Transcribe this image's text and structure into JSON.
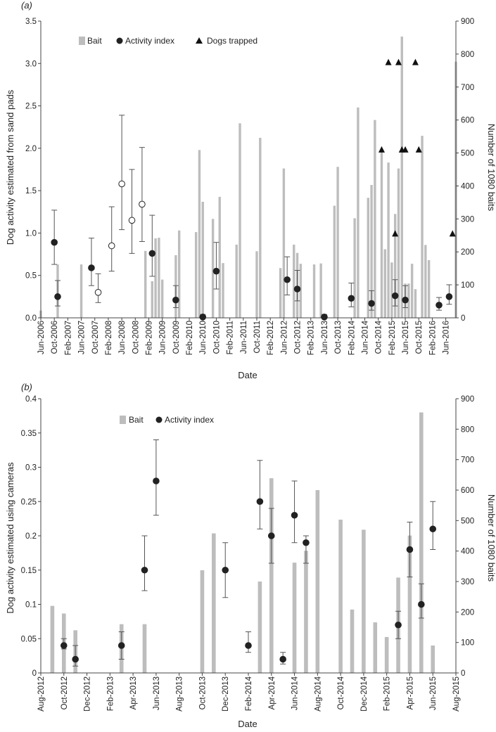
{
  "chart_data": [
    {
      "type": "bar",
      "panel_label": "(a)",
      "xlabel": "Date",
      "ylabel": "Dog activity estimated from sand pads",
      "ylabel_right": "Number of 1080 baits",
      "ylim": [
        0,
        3.5
      ],
      "yticks": [
        "0.0",
        "0.5",
        "1.0",
        "1.5",
        "2.0",
        "2.5",
        "3.0",
        "3.5"
      ],
      "ylim_right": [
        0,
        900
      ],
      "yticks_right": [
        "0",
        "100",
        "200",
        "300",
        "400",
        "500",
        "600",
        "700",
        "800",
        "900"
      ],
      "xlim": [
        "2006-06",
        "2016-09"
      ],
      "x_ticks": [
        "Jun-2006",
        "Oct-2006",
        "Feb-2007",
        "Jun-2007",
        "Oct-2007",
        "Feb-2008",
        "Jun-2008",
        "Oct-2008",
        "Feb-2009",
        "Jun-2009",
        "Oct-2009",
        "Feb-2010",
        "Jun-2010",
        "Oct-2010",
        "Feb-2011",
        "Jun-2011",
        "Oct-2011",
        "Feb-2012",
        "Jun-2012",
        "Oct-2012",
        "Feb-2013",
        "Jun-2013",
        "Oct-2013",
        "Feb-2014",
        "Jun-2014",
        "Oct-2014",
        "Feb-2015",
        "Jun-2015",
        "Oct-2015",
        "Feb-2016",
        "Jun-2016"
      ],
      "legend": {
        "placement": "top-left",
        "bait": "Bait",
        "activity": "Activity index",
        "dogs": "Dogs trapped"
      },
      "colors": {
        "bait": "#bdbdbd",
        "activity": "#222222",
        "activity_open": "#ffffff",
        "dogs": "#111111"
      },
      "bait": [
        {
          "x": "2006-06",
          "y": 22
        },
        {
          "x": "2006-11",
          "y": 162
        },
        {
          "x": "2007-06",
          "y": 162
        },
        {
          "x": "2009-01",
          "y": 203
        },
        {
          "x": "2009-03",
          "y": 111
        },
        {
          "x": "2009-04",
          "y": 241
        },
        {
          "x": "2009-05",
          "y": 243
        },
        {
          "x": "2009-06",
          "y": 116
        },
        {
          "x": "2009-10",
          "y": 190
        },
        {
          "x": "2009-11",
          "y": 265
        },
        {
          "x": "2010-04",
          "y": 260
        },
        {
          "x": "2010-05",
          "y": 509
        },
        {
          "x": "2010-06",
          "y": 352
        },
        {
          "x": "2010-09",
          "y": 300
        },
        {
          "x": "2010-11",
          "y": 367
        },
        {
          "x": "2010-12",
          "y": 166
        },
        {
          "x": "2011-04",
          "y": 222
        },
        {
          "x": "2011-05",
          "y": 590
        },
        {
          "x": "2011-10",
          "y": 202
        },
        {
          "x": "2011-11",
          "y": 546
        },
        {
          "x": "2012-05",
          "y": 151
        },
        {
          "x": "2012-06",
          "y": 453
        },
        {
          "x": "2012-09",
          "y": 222
        },
        {
          "x": "2012-10",
          "y": 197
        },
        {
          "x": "2012-11",
          "y": 164
        },
        {
          "x": "2013-03",
          "y": 162
        },
        {
          "x": "2013-05",
          "y": 165
        },
        {
          "x": "2013-09",
          "y": 340
        },
        {
          "x": "2013-10",
          "y": 458
        },
        {
          "x": "2014-03",
          "y": 302
        },
        {
          "x": "2014-04",
          "y": 638
        },
        {
          "x": "2014-07",
          "y": 364
        },
        {
          "x": "2014-08",
          "y": 403
        },
        {
          "x": "2014-09",
          "y": 600
        },
        {
          "x": "2014-11",
          "y": 510
        },
        {
          "x": "2014-12",
          "y": 208
        },
        {
          "x": "2015-01",
          "y": 471
        },
        {
          "x": "2015-02",
          "y": 168
        },
        {
          "x": "2015-03",
          "y": 315
        },
        {
          "x": "2015-04",
          "y": 453
        },
        {
          "x": "2015-05",
          "y": 853
        },
        {
          "x": "2015-06",
          "y": 104
        },
        {
          "x": "2015-07",
          "y": 104
        },
        {
          "x": "2015-08",
          "y": 164
        },
        {
          "x": "2015-09",
          "y": 87
        },
        {
          "x": "2015-11",
          "y": 552
        },
        {
          "x": "2015-12",
          "y": 221
        },
        {
          "x": "2016-01",
          "y": 175
        },
        {
          "x": "2016-09",
          "y": 777
        }
      ],
      "activity_index": [
        {
          "x": "2006-10",
          "y": 0.89,
          "lo": 0.63,
          "hi": 1.27,
          "filled": true
        },
        {
          "x": "2006-11",
          "y": 0.25,
          "lo": 0.14,
          "hi": 0.44,
          "filled": true
        },
        {
          "x": "2007-09",
          "y": 0.59,
          "lo": 0.38,
          "hi": 0.94,
          "filled": true
        },
        {
          "x": "2007-11",
          "y": 0.3,
          "lo": 0.18,
          "hi": 0.52,
          "filled": false
        },
        {
          "x": "2008-03",
          "y": 0.85,
          "lo": 0.55,
          "hi": 1.31,
          "filled": false
        },
        {
          "x": "2008-06",
          "y": 1.58,
          "lo": 1.04,
          "hi": 2.39,
          "filled": false
        },
        {
          "x": "2008-09",
          "y": 1.15,
          "lo": 0.76,
          "hi": 1.75,
          "filled": false
        },
        {
          "x": "2008-12",
          "y": 1.34,
          "lo": 0.9,
          "hi": 2.01,
          "filled": false
        },
        {
          "x": "2009-03",
          "y": 0.76,
          "lo": 0.49,
          "hi": 1.21,
          "filled": true
        },
        {
          "x": "2009-10",
          "y": 0.21,
          "lo": 0.12,
          "hi": 0.38,
          "filled": true
        },
        {
          "x": "2010-06",
          "y": 0.01,
          "lo": 0.0,
          "hi": 0.04,
          "filled": true
        },
        {
          "x": "2010-10",
          "y": 0.55,
          "lo": 0.34,
          "hi": 0.89,
          "filled": true
        },
        {
          "x": "2012-07",
          "y": 0.45,
          "lo": 0.27,
          "hi": 0.72,
          "filled": true
        },
        {
          "x": "2012-10",
          "y": 0.34,
          "lo": 0.2,
          "hi": 0.56,
          "filled": true
        },
        {
          "x": "2013-06",
          "y": 0.01,
          "lo": 0.0,
          "hi": 0.04,
          "filled": true
        },
        {
          "x": "2014-02",
          "y": 0.23,
          "lo": 0.13,
          "hi": 0.41,
          "filled": true
        },
        {
          "x": "2014-08",
          "y": 0.17,
          "lo": 0.09,
          "hi": 0.32,
          "filled": true
        },
        {
          "x": "2015-03",
          "y": 0.26,
          "lo": 0.14,
          "hi": 0.45,
          "filled": true
        },
        {
          "x": "2015-06",
          "y": 0.21,
          "lo": 0.12,
          "hi": 0.38,
          "filled": true
        },
        {
          "x": "2016-04",
          "y": 0.15,
          "lo": 0.09,
          "hi": 0.24,
          "filled": true
        },
        {
          "x": "2016-07",
          "y": 0.25,
          "lo": 0.16,
          "hi": 0.39,
          "filled": true
        }
      ],
      "dogs_trapped": [
        {
          "x": "2014-11",
          "y": 510
        },
        {
          "x": "2015-01",
          "y": 775
        },
        {
          "x": "2015-03",
          "y": 255
        },
        {
          "x": "2015-04",
          "y": 775
        },
        {
          "x": "2015-05",
          "y": 510
        },
        {
          "x": "2015-06",
          "y": 510
        },
        {
          "x": "2015-09",
          "y": 775
        },
        {
          "x": "2015-10",
          "y": 510
        },
        {
          "x": "2016-08",
          "y": 255
        }
      ]
    },
    {
      "type": "bar",
      "panel_label": "(b)",
      "xlabel": "Date",
      "ylabel": "Dog activity estimated using cameras",
      "ylabel_right": "Number of 1080 baits",
      "ylim": [
        0,
        0.4
      ],
      "yticks": [
        "0",
        "0.05",
        "0.1",
        "0.15",
        "0.2",
        "0.25",
        "0.3",
        "0.35",
        "0.4"
      ],
      "ylim_right": [
        0,
        900
      ],
      "yticks_right": [
        "0",
        "100",
        "200",
        "300",
        "400",
        "500",
        "600",
        "700",
        "800",
        "900"
      ],
      "xlim": [
        "2012-08",
        "2015-08"
      ],
      "x_ticks": [
        "Aug-2012",
        "Oct-2012",
        "Dec-2012",
        "Feb-2013",
        "Apr-2013",
        "Jun-2013",
        "Aug-2013",
        "Oct-2013",
        "Dec-2013",
        "Feb-2014",
        "Apr-2014",
        "Jun-2014",
        "Aug-2014",
        "Oct-2014",
        "Dec-2014",
        "Feb-2015",
        "Apr-2015",
        "Jun-2015",
        "Aug-2015"
      ],
      "legend": {
        "placement": "top-left",
        "bait": "Bait",
        "activity": "Activity index"
      },
      "colors": {
        "bait": "#bdbdbd",
        "activity": "#222222"
      },
      "bait": [
        {
          "x": "2012-09",
          "y": 220
        },
        {
          "x": "2012-10",
          "y": 195
        },
        {
          "x": "2012-11",
          "y": 140
        },
        {
          "x": "2013-03",
          "y": 160
        },
        {
          "x": "2013-05",
          "y": 160
        },
        {
          "x": "2013-10",
          "y": 337
        },
        {
          "x": "2013-11",
          "y": 458
        },
        {
          "x": "2014-03",
          "y": 300
        },
        {
          "x": "2014-04",
          "y": 639
        },
        {
          "x": "2014-06",
          "y": 362
        },
        {
          "x": "2014-07",
          "y": 401
        },
        {
          "x": "2014-08",
          "y": 600
        },
        {
          "x": "2014-10",
          "y": 503
        },
        {
          "x": "2014-11",
          "y": 208
        },
        {
          "x": "2014-12",
          "y": 470
        },
        {
          "x": "2015-01",
          "y": 166
        },
        {
          "x": "2015-02",
          "y": 118
        },
        {
          "x": "2015-03",
          "y": 313
        },
        {
          "x": "2015-04",
          "y": 451
        },
        {
          "x": "2015-05",
          "y": 855
        },
        {
          "x": "2015-06",
          "y": 90
        }
      ],
      "activity_index": [
        {
          "x": "2012-10",
          "y": 0.04,
          "lo": 0.035,
          "hi": 0.05
        },
        {
          "x": "2012-11",
          "y": 0.02,
          "lo": 0.01,
          "hi": 0.04
        },
        {
          "x": "2013-03",
          "y": 0.04,
          "lo": 0.02,
          "hi": 0.06
        },
        {
          "x": "2013-05",
          "y": 0.15,
          "lo": 0.12,
          "hi": 0.2
        },
        {
          "x": "2013-06",
          "y": 0.28,
          "lo": 0.23,
          "hi": 0.34
        },
        {
          "x": "2013-12",
          "y": 0.15,
          "lo": 0.11,
          "hi": 0.19
        },
        {
          "x": "2014-02",
          "y": 0.04,
          "lo": 0.03,
          "hi": 0.06
        },
        {
          "x": "2014-03",
          "y": 0.25,
          "lo": 0.21,
          "hi": 0.31
        },
        {
          "x": "2014-04",
          "y": 0.2,
          "lo": 0.16,
          "hi": 0.24
        },
        {
          "x": "2014-05",
          "y": 0.02,
          "lo": 0.013,
          "hi": 0.03
        },
        {
          "x": "2014-06",
          "y": 0.23,
          "lo": 0.19,
          "hi": 0.28
        },
        {
          "x": "2014-07",
          "y": 0.19,
          "lo": 0.16,
          "hi": 0.2
        },
        {
          "x": "2015-03",
          "y": 0.07,
          "lo": 0.05,
          "hi": 0.09
        },
        {
          "x": "2015-04",
          "y": 0.18,
          "lo": 0.14,
          "hi": 0.22
        },
        {
          "x": "2015-05",
          "y": 0.1,
          "lo": 0.08,
          "hi": 0.13
        },
        {
          "x": "2015-06",
          "y": 0.21,
          "lo": 0.18,
          "hi": 0.25
        }
      ]
    }
  ]
}
